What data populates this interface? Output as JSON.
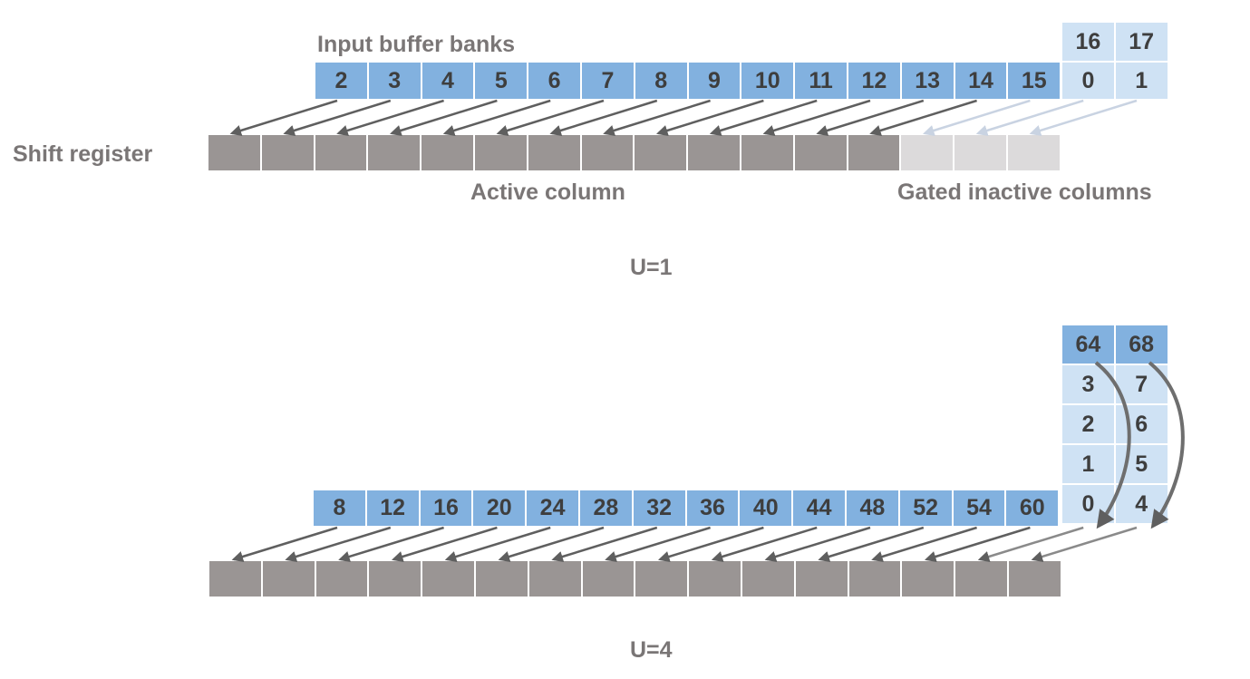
{
  "labels": {
    "input_buffer_banks": "Input buffer banks",
    "shift_register": "Shift register",
    "active_column": "Active column",
    "gated_inactive_columns": "Gated inactive columns",
    "u1": "U=1",
    "u4": "U=4"
  },
  "u1": {
    "main_row": [
      "2",
      "3",
      "4",
      "5",
      "6",
      "7",
      "8",
      "9",
      "10",
      "11",
      "12",
      "13",
      "14",
      "15"
    ],
    "side_top": [
      "16",
      "17"
    ],
    "side_bottom": [
      "0",
      "1"
    ],
    "register_active_count": 13,
    "register_inactive_count": 3
  },
  "u4": {
    "main_row": [
      "8",
      "12",
      "16",
      "20",
      "24",
      "28",
      "32",
      "36",
      "40",
      "44",
      "48",
      "52",
      "54",
      "60"
    ],
    "side_columns": [
      [
        "64",
        "3",
        "2",
        "1",
        "0"
      ],
      [
        "68",
        "7",
        "6",
        "5",
        "4"
      ]
    ],
    "register_count": 16
  },
  "colors": {
    "bank_blue": "#82b1df",
    "bank_light_blue": "#cfe2f4",
    "register_active": "#9a9594",
    "register_inactive": "#dcdadb",
    "arrow_dark": "#5f5f5f",
    "arrow_light": "#c9d3e2",
    "text": "#3e3e3e",
    "label": "#7a7676"
  }
}
